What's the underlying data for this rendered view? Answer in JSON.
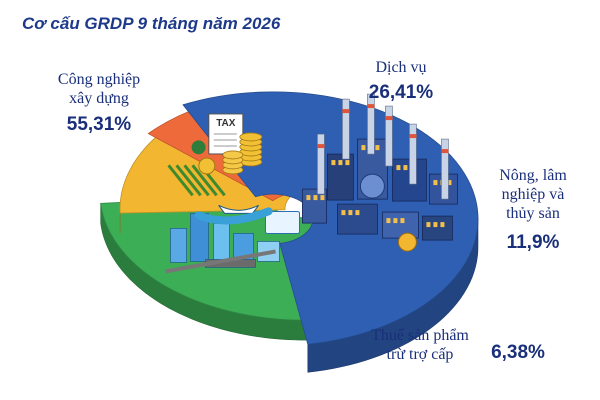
{
  "chart_data": {
    "type": "pie",
    "title": "Cơ cấu GRDP 9 tháng năm 2026",
    "categories": [
      "Công nghiệp xây dựng",
      "Dịch vụ",
      "Nông, lâm nghiệp và thủy sản",
      "Thuế sản phẩm trừ trợ cấp"
    ],
    "values": [
      55.31,
      26.41,
      11.9,
      6.38
    ],
    "value_labels": [
      "55,31%",
      "26,41%",
      "11,9%",
      "6,38%"
    ],
    "label_lines": [
      [
        "Công nghiệp",
        "xây dựng"
      ],
      [
        "Dịch vụ"
      ],
      [
        "Nông, lâm",
        "nghiệp và",
        "thủy sản"
      ],
      [
        "Thuế sản phẩm",
        "trừ trợ cấp"
      ]
    ],
    "colors": [
      "#2f5fb3",
      "#3cae56",
      "#f2b630",
      "#ef6a3a"
    ],
    "illustrations": [
      "factory-icon",
      "city-icon",
      "farm-field-icon",
      "tax-coins-icon"
    ],
    "tax_tag": "TAX",
    "legend": "none"
  }
}
